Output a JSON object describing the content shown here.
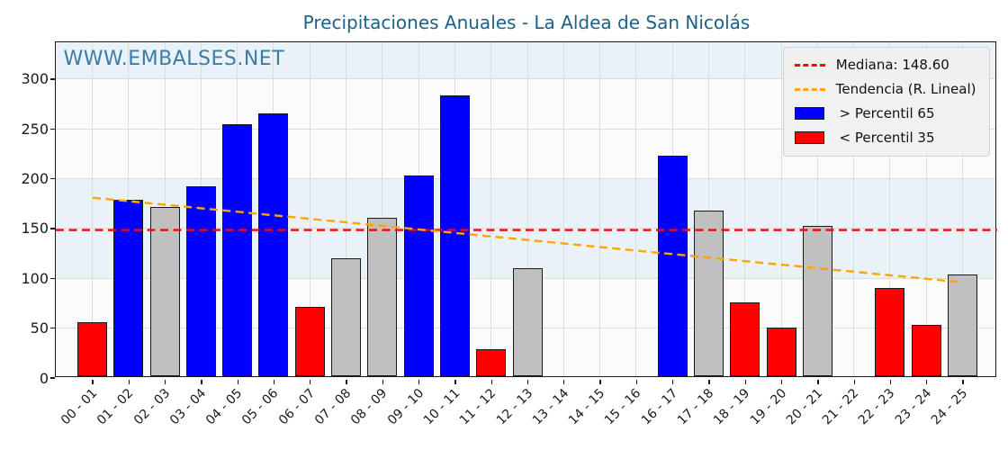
{
  "title": "Precipitaciones Anuales - La Aldea de San Nicolás",
  "watermark": "WWW.EMBALSES.NET",
  "colors": {
    "title": "#1b6189",
    "watermark": "#3a7ca5",
    "above_p65": "#0000ff",
    "below_p35": "#ff0000",
    "mid": "#c0c0c0",
    "median_line": "#ff0000",
    "trend_line": "#ffa500",
    "band": "#e9f2f7",
    "plot_bg": "#fbfbfb",
    "grid": "#dcdcdc",
    "bar_edge": "#1a1a1a"
  },
  "legend": {
    "items": [
      {
        "sample": "dashed-line",
        "color_key": "median_line",
        "label": "Mediana: 148.60"
      },
      {
        "sample": "dashed-line",
        "color_key": "trend_line",
        "label": "Tendencia (R. Lineal)"
      },
      {
        "sample": "rect",
        "color_key": "above_p65",
        "label": " > Percentil 65"
      },
      {
        "sample": "rect",
        "color_key": "below_p35",
        "label": " < Percentil 35"
      }
    ]
  },
  "chart_data": {
    "type": "bar",
    "title": "Precipitaciones Anuales - La Aldea de San Nicolás",
    "xlabel": "",
    "ylabel": "",
    "categories": [
      "00 - 01",
      "01 - 02",
      "02 - 03",
      "03 - 04",
      "04 - 05",
      "05 - 06",
      "06 - 07",
      "07 - 08",
      "08 - 09",
      "09 - 10",
      "10 - 11",
      "11 - 12",
      "12 - 13",
      "13 - 14",
      "14 - 15",
      "15 - 16",
      "16 - 17",
      "17 - 18",
      "18 - 19",
      "19 - 20",
      "20 - 21",
      "21 - 22",
      "22 - 23",
      "23 - 24",
      "24 - 25"
    ],
    "values": [
      52,
      175,
      168,
      189,
      251,
      262,
      68,
      117,
      157,
      200,
      280,
      25,
      107,
      null,
      null,
      null,
      220,
      164,
      72,
      47,
      149,
      null,
      87,
      50,
      100
    ],
    "bar_colors": [
      "below_p35",
      "above_p65",
      "mid",
      "above_p65",
      "above_p65",
      "above_p65",
      "below_p35",
      "mid",
      "mid",
      "above_p65",
      "above_p65",
      "below_p35",
      "mid",
      null,
      null,
      null,
      "above_p65",
      "mid",
      "below_p35",
      "below_p35",
      "mid",
      null,
      "below_p35",
      "below_p35",
      "mid"
    ],
    "median": 148.6,
    "trend_linear": {
      "start_value": 181,
      "end_value": 96
    },
    "yticks": [
      0,
      50,
      100,
      150,
      200,
      250,
      300
    ],
    "ylim": [
      0,
      337
    ],
    "bands_highlight": [
      [
        100,
        200
      ],
      [
        300,
        337
      ]
    ],
    "grid": true,
    "legend_position": "upper right"
  }
}
